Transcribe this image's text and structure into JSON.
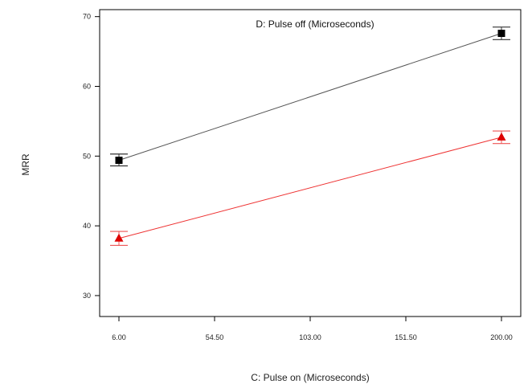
{
  "chart_data": {
    "type": "line",
    "title": "D: Pulse off (Microseconds)",
    "xlabel": "C: Pulse on (Microseconds)",
    "ylabel": "MRR",
    "xlim": [
      6.0,
      200.0
    ],
    "ylim": [
      27,
      71
    ],
    "x_ticks": [
      6.0,
      54.5,
      103.0,
      151.5,
      200.0
    ],
    "x_tick_labels": [
      "6.00",
      "54.50",
      "103.00",
      "151.50",
      "200.00"
    ],
    "y_ticks": [
      30,
      40,
      50,
      60,
      70
    ],
    "y_tick_labels": [
      "30",
      "40",
      "50",
      "60",
      "70"
    ],
    "grid": false,
    "series": [
      {
        "marker": "square",
        "color": "#000000",
        "line_color": "#555555",
        "error_color": "#333333",
        "x": [
          6.0,
          200.0
        ],
        "y": [
          49.4,
          67.6
        ],
        "err_low": [
          48.6,
          66.7
        ],
        "err_high": [
          50.3,
          68.5
        ]
      },
      {
        "marker": "triangle",
        "color": "#dd0000",
        "line_color": "#ee3333",
        "error_color": "#ee5555",
        "x": [
          6.0,
          200.0
        ],
        "y": [
          38.2,
          52.7
        ],
        "err_low": [
          37.2,
          51.8
        ],
        "err_high": [
          39.2,
          53.6
        ]
      }
    ]
  }
}
